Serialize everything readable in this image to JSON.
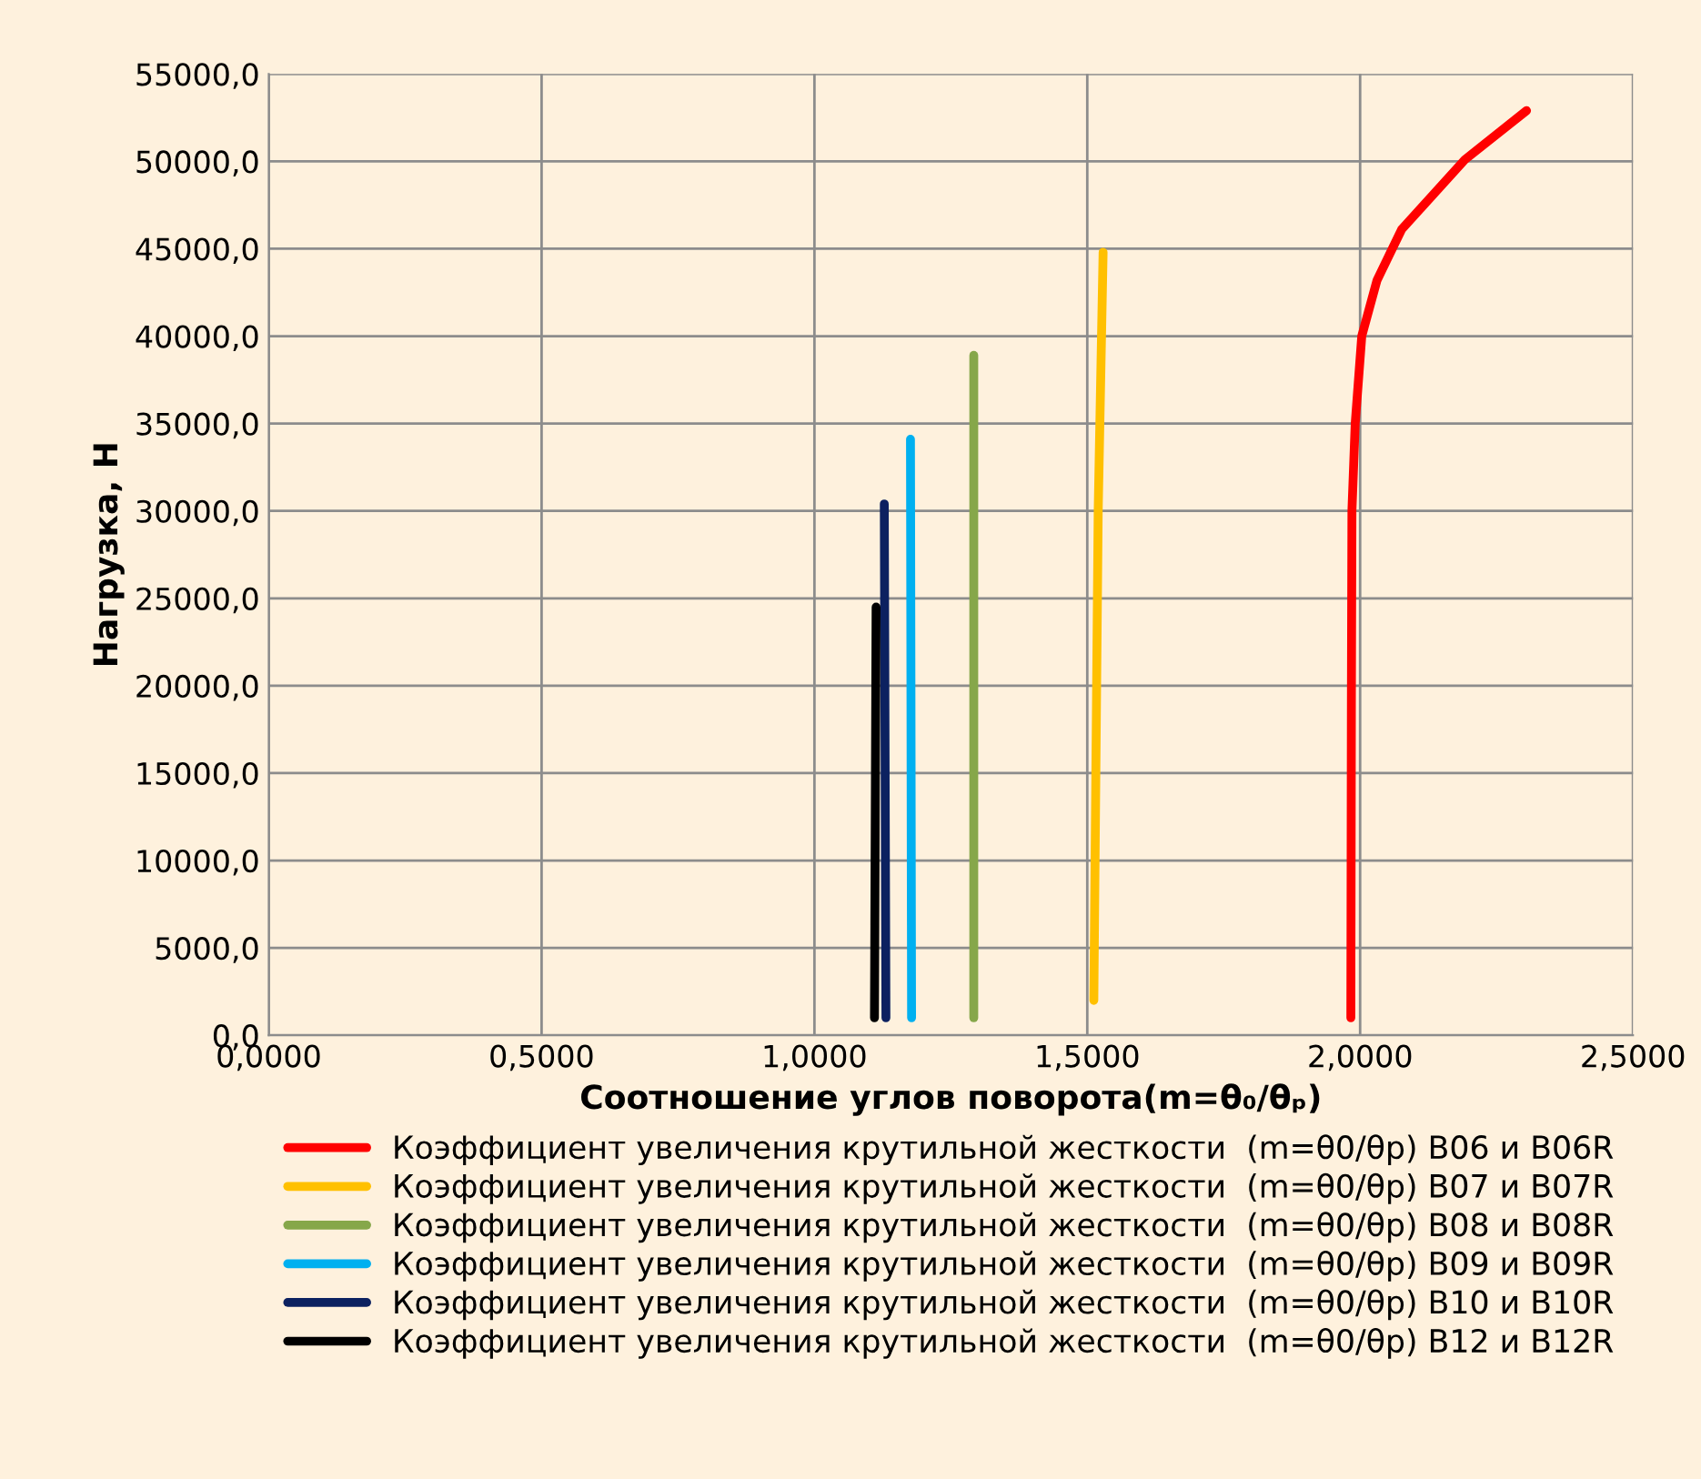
{
  "chart_data": {
    "type": "line",
    "xlabel": "Соотношение углов поворота(m=θ₀/θₚ)",
    "ylabel": "Нагрузка, Н",
    "xlim": [
      0,
      2.5
    ],
    "xticks": [
      {
        "value": 0,
        "label": "0,0000"
      },
      {
        "value": 0.5,
        "label": "0,5000"
      },
      {
        "value": 1,
        "label": "1,0000"
      },
      {
        "value": 1.5,
        "label": "1,5000"
      },
      {
        "value": 2,
        "label": "2,0000"
      },
      {
        "value": 2.5,
        "label": "2,5000"
      }
    ],
    "ylim": [
      0,
      55000
    ],
    "yticks": [
      {
        "value": 0,
        "label": "0,0"
      },
      {
        "value": 5000,
        "label": "5000,0"
      },
      {
        "value": 10000,
        "label": "10000,0"
      },
      {
        "value": 15000,
        "label": "15000,0"
      },
      {
        "value": 20000,
        "label": "20000,0"
      },
      {
        "value": 25000,
        "label": "25000,0"
      },
      {
        "value": 30000,
        "label": "30000,0"
      },
      {
        "value": 35000,
        "label": "35000,0"
      },
      {
        "value": 40000,
        "label": "40000,0"
      },
      {
        "value": 45000,
        "label": "45000,0"
      },
      {
        "value": 50000,
        "label": "50000,0"
      },
      {
        "value": 55000,
        "label": "55000,0"
      }
    ],
    "grid": true,
    "legend": "bottom",
    "marker": "none",
    "line_style": "solid",
    "series": [
      {
        "name": "Коэффициент увеличения крутильной жесткости  (m=θ0/θр) В06 и В06R",
        "color": "#ff0000",
        "x": [
          1.983,
          1.984,
          1.985,
          1.991,
          2.003,
          2.031,
          2.076,
          2.192,
          2.305
        ],
        "values": [
          1000,
          19000,
          30000,
          35000,
          40000,
          43200,
          46100,
          50100,
          52900
        ]
      },
      {
        "name": "Коэффициент увеличения крутильной жесткости  (m=θ0/θр) В07 и В07R",
        "color": "#ffc000",
        "x": [
          1.512,
          1.52,
          1.529
        ],
        "values": [
          2000,
          30000,
          44800
        ]
      },
      {
        "name": "Коэффициент увеличения крутильной жесткости  (m=θ0/θр) В08 и В08R",
        "color": "#86a74a",
        "x": [
          1.292,
          1.292
        ],
        "values": [
          1000,
          38900
        ]
      },
      {
        "name": "Коэффициент увеличения крутильной жесткости  (m=θ0/θр) В09 и В09R",
        "color": "#00b0f0",
        "x": [
          1.178,
          1.176
        ],
        "values": [
          1000,
          34100
        ]
      },
      {
        "name": "Коэффициент увеличения крутильной жесткости  (m=θ0/θр) В10 и В10R",
        "color": "#0c2160",
        "x": [
          1.131,
          1.128
        ],
        "values": [
          1000,
          30400
        ]
      },
      {
        "name": "Коэффициент увеличения крутильной жесткости  (m=θ0/θр) В12 и В12R",
        "color": "#000000",
        "x": [
          1.11,
          1.113
        ],
        "values": [
          1000,
          24500
        ]
      }
    ]
  }
}
